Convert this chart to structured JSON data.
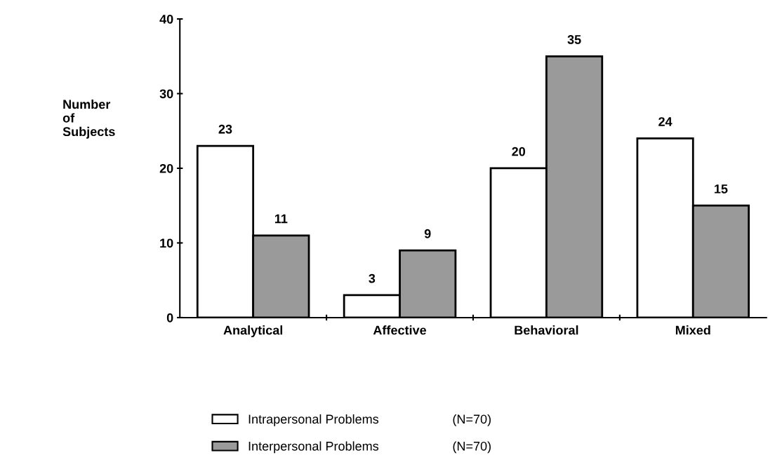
{
  "chart_data": {
    "type": "bar",
    "ylabel": "Number\nof\nSubjects",
    "categories": [
      "Analytical",
      "Affective",
      "Behavioral",
      "Mixed"
    ],
    "series": [
      {
        "name": "Intrapersonal Problems",
        "color": "#ffffff",
        "values": [
          23,
          3,
          20,
          24
        ]
      },
      {
        "name": "Interpersonal Problems",
        "color": "#9a9a9a",
        "values": [
          11,
          9,
          35,
          15
        ]
      }
    ],
    "annotations": [
      "(N=70)",
      "(N=70)"
    ],
    "ylim": [
      0,
      40
    ],
    "yticks": [
      0,
      10,
      20,
      30,
      40
    ],
    "grid": false,
    "legend": "bottom",
    "data_labels": true
  }
}
